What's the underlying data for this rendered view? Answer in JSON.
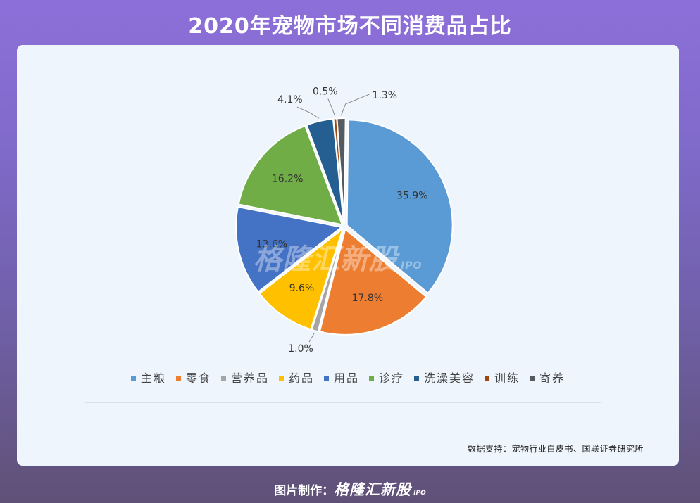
{
  "header": {
    "title": "2020年宠物市场不同消费品占比"
  },
  "chart_data": {
    "type": "pie",
    "title": "2020年宠物市场不同消费品占比",
    "slices": [
      {
        "label": "寄养",
        "value": 1.3,
        "text": "1.3%",
        "color": "#555a60"
      },
      {
        "label": "主粮",
        "value": 35.9,
        "text": "35.9%",
        "color": "#5b9bd5"
      },
      {
        "label": "零食",
        "value": 17.8,
        "text": "17.8%",
        "color": "#ed7d31"
      },
      {
        "label": "营养品",
        "value": 1.0,
        "text": "1.0%",
        "color": "#a5a5a5"
      },
      {
        "label": "药品",
        "value": 9.6,
        "text": "9.6%",
        "color": "#ffc000"
      },
      {
        "label": "用品",
        "value": 13.6,
        "text": "13.6%",
        "color": "#4472c4"
      },
      {
        "label": "诊疗",
        "value": 16.2,
        "text": "16.2%",
        "color": "#70ad47"
      },
      {
        "label": "洗澡美容",
        "value": 4.1,
        "text": "4.1%",
        "color": "#255e91"
      },
      {
        "label": "训练",
        "value": 0.5,
        "text": "0.5%",
        "color": "#9e480e"
      }
    ],
    "legend": [
      {
        "label": "主粮",
        "color": "#5b9bd5"
      },
      {
        "label": "零食",
        "color": "#ed7d31"
      },
      {
        "label": "营养品",
        "color": "#a5a5a5"
      },
      {
        "label": "药品",
        "color": "#ffc000"
      },
      {
        "label": "用品",
        "color": "#4472c4"
      },
      {
        "label": "诊疗",
        "color": "#70ad47"
      },
      {
        "label": "洗澡美容",
        "color": "#255e91"
      },
      {
        "label": "训练",
        "color": "#9e480e"
      },
      {
        "label": "寄养",
        "color": "#555a60"
      }
    ],
    "legend_position": "bottom"
  },
  "watermark": {
    "main": "格隆汇新股",
    "sub": "IPO"
  },
  "source": {
    "text": "数据支持：宠物行业白皮书、国联证券研究所"
  },
  "footer": {
    "prefix": "图片制作：",
    "brand": "格隆汇新股",
    "brand_sub": "IPO"
  }
}
